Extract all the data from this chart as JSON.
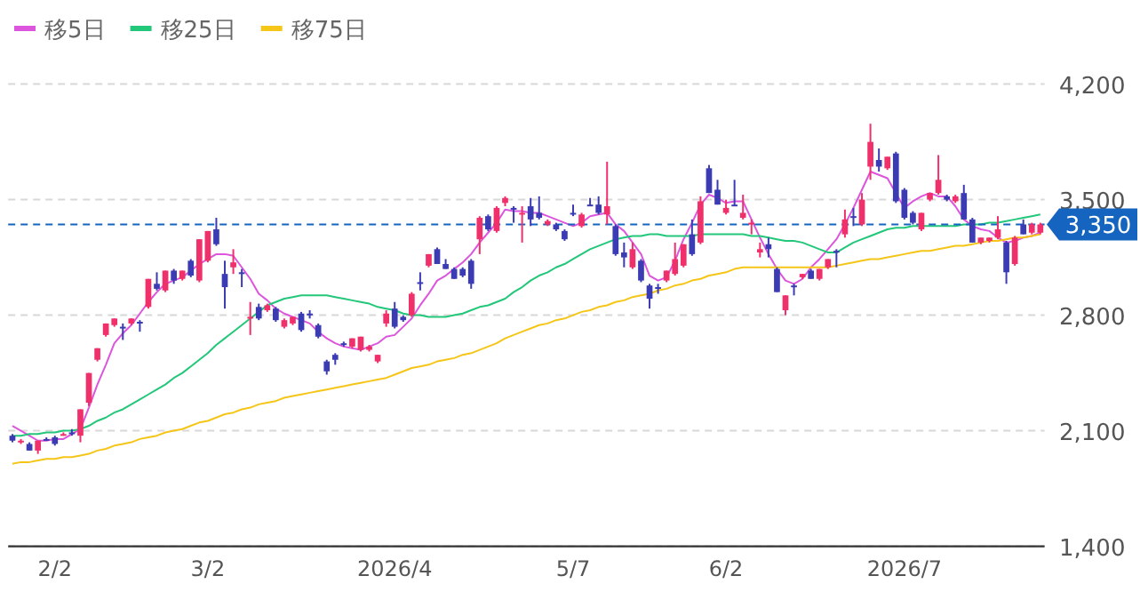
{
  "chart_data": {
    "type": "candlestick",
    "categories": [
      null,
      null,
      null,
      null,
      null,
      "2/2",
      null,
      null,
      null,
      null,
      null,
      null,
      null,
      null,
      null,
      null,
      null,
      null,
      null,
      null,
      null,
      null,
      null,
      "3/2",
      null,
      null,
      null,
      null,
      null,
      null,
      null,
      null,
      null,
      null,
      null,
      null,
      null,
      null,
      null,
      null,
      null,
      null,
      null,
      null,
      null,
      "2026/4",
      null,
      null,
      null,
      null,
      null,
      null,
      null,
      null,
      null,
      null,
      null,
      null,
      null,
      null,
      null,
      null,
      null,
      null,
      null,
      null,
      "5/7",
      null,
      null,
      null,
      null,
      null,
      null,
      null,
      null,
      null,
      null,
      null,
      null,
      null,
      null,
      null,
      null,
      null,
      "6/2",
      null,
      null,
      null,
      null,
      null,
      null,
      null,
      null,
      null,
      null,
      null,
      null,
      null,
      null,
      null,
      null,
      null,
      null,
      null,
      null,
      "2026/7",
      null,
      null,
      null,
      null,
      null,
      null,
      null,
      null,
      null,
      null,
      null,
      null,
      null,
      null,
      null,
      null
    ],
    "ohlc": [
      [
        2070,
        2080,
        2030,
        2040
      ],
      [
        2030,
        2050,
        2020,
        2040
      ],
      [
        2020,
        2030,
        1980,
        1980
      ],
      [
        1980,
        2040,
        1960,
        2040
      ],
      [
        2050,
        2060,
        2040,
        2040
      ],
      [
        2060,
        2070,
        2010,
        2020
      ],
      [
        2080,
        2090,
        2070,
        2080
      ],
      [
        2090,
        2110,
        2070,
        2090
      ],
      [
        2070,
        2230,
        2030,
        2230
      ],
      [
        2270,
        2450,
        2250,
        2450
      ],
      [
        2530,
        2600,
        2520,
        2600
      ],
      [
        2680,
        2750,
        2670,
        2750
      ],
      [
        2740,
        2780,
        2730,
        2780
      ],
      [
        2730,
        2750,
        2650,
        2720
      ],
      [
        2750,
        2780,
        2740,
        2780
      ],
      [
        2760,
        2770,
        2700,
        2750
      ],
      [
        2850,
        3020,
        2840,
        3020
      ],
      [
        2990,
        3060,
        2950,
        2960
      ],
      [
        2950,
        3070,
        2940,
        3070
      ],
      [
        3070,
        3080,
        2990,
        3010
      ],
      [
        3020,
        3070,
        3010,
        3070
      ],
      [
        3130,
        3140,
        3030,
        3040
      ],
      [
        3010,
        3260,
        3000,
        3260
      ],
      [
        3130,
        3310,
        3120,
        3310
      ],
      [
        3320,
        3390,
        3220,
        3230
      ],
      [
        3050,
        3130,
        2840,
        2970
      ],
      [
        3090,
        3200,
        3050,
        3120
      ],
      [
        3060,
        3080,
        2970,
        3050
      ],
      [
        2780,
        2880,
        2680,
        2790
      ],
      [
        2850,
        2870,
        2770,
        2780
      ],
      [
        2830,
        2870,
        2820,
        2860
      ],
      [
        2840,
        2850,
        2760,
        2770
      ],
      [
        2730,
        2780,
        2720,
        2770
      ],
      [
        2750,
        2790,
        2740,
        2790
      ],
      [
        2810,
        2820,
        2700,
        2710
      ],
      [
        2810,
        2830,
        2780,
        2800
      ],
      [
        2740,
        2750,
        2660,
        2670
      ],
      [
        2520,
        2530,
        2440,
        2460
      ],
      [
        2560,
        2570,
        2500,
        2530
      ],
      [
        2630,
        2640,
        2610,
        2620
      ],
      [
        2610,
        2660,
        2600,
        2660
      ],
      [
        2590,
        2670,
        2580,
        2670
      ],
      [
        2590,
        2620,
        2580,
        2610
      ],
      [
        2520,
        2560,
        2510,
        2560
      ],
      [
        2750,
        2830,
        2730,
        2810
      ],
      [
        2840,
        2880,
        2720,
        2730
      ],
      [
        2790,
        2800,
        2760,
        2770
      ],
      [
        2800,
        2940,
        2790,
        2930
      ],
      [
        3000,
        3060,
        2950,
        2990
      ],
      [
        3100,
        3170,
        3090,
        3170
      ],
      [
        3200,
        3210,
        3110,
        3110
      ],
      [
        3110,
        3140,
        3080,
        3080
      ],
      [
        3080,
        3090,
        3020,
        3020
      ],
      [
        3080,
        3090,
        3030,
        3040
      ],
      [
        3130,
        3140,
        2960,
        2990
      ],
      [
        3260,
        3400,
        3170,
        3390
      ],
      [
        3400,
        3410,
        3310,
        3320
      ],
      [
        3310,
        3460,
        3300,
        3450
      ],
      [
        3480,
        3520,
        3460,
        3510
      ],
      [
        3450,
        3460,
        3360,
        3440
      ],
      [
        3410,
        3460,
        3240,
        3420
      ],
      [
        3460,
        3510,
        3340,
        3380
      ],
      [
        3420,
        3520,
        3380,
        3390
      ],
      [
        3350,
        3380,
        3340,
        3370
      ],
      [
        3350,
        3360,
        3310,
        3320
      ],
      [
        3310,
        3320,
        3250,
        3260
      ],
      [
        3420,
        3470,
        3400,
        3410
      ],
      [
        3340,
        3420,
        3330,
        3410
      ],
      [
        3470,
        3510,
        3460,
        3460
      ],
      [
        3470,
        3520,
        3410,
        3420
      ],
      [
        3410,
        3730,
        3350,
        3460
      ],
      [
        3340,
        3350,
        3160,
        3170
      ],
      [
        3180,
        3240,
        3090,
        3150
      ],
      [
        3090,
        3240,
        3080,
        3200
      ],
      [
        3130,
        3140,
        3000,
        3010
      ],
      [
        2980,
        2990,
        2840,
        2900
      ],
      [
        2970,
        2990,
        2930,
        2960
      ],
      [
        3010,
        3070,
        3000,
        3070
      ],
      [
        3050,
        3240,
        3040,
        3140
      ],
      [
        3100,
        3230,
        3090,
        3230
      ],
      [
        3290,
        3380,
        3160,
        3170
      ],
      [
        3240,
        3520,
        3230,
        3490
      ],
      [
        3690,
        3710,
        3540,
        3540
      ],
      [
        3560,
        3620,
        3470,
        3470
      ],
      [
        3420,
        3500,
        3410,
        3450
      ],
      [
        3470,
        3620,
        3460,
        3470
      ],
      [
        3390,
        3530,
        3380,
        3420
      ],
      [
        3350,
        3380,
        3290,
        3360
      ],
      [
        3180,
        3240,
        3150,
        3200
      ],
      [
        3230,
        3270,
        3150,
        3200
      ],
      [
        3080,
        3090,
        2940,
        2940
      ],
      [
        2830,
        2920,
        2800,
        2920
      ],
      [
        2980,
        2990,
        2920,
        2970
      ],
      [
        3030,
        3050,
        3020,
        3050
      ],
      [
        3070,
        3080,
        3020,
        3020
      ],
      [
        3020,
        3080,
        3010,
        3080
      ],
      [
        3090,
        3140,
        3080,
        3140
      ],
      [
        3190,
        3200,
        3090,
        3180
      ],
      [
        3290,
        3440,
        3270,
        3380
      ],
      [
        3400,
        3450,
        3340,
        3390
      ],
      [
        3350,
        3540,
        3340,
        3500
      ],
      [
        3700,
        3960,
        3620,
        3850
      ],
      [
        3740,
        3810,
        3670,
        3700
      ],
      [
        3690,
        3760,
        3680,
        3760
      ],
      [
        3780,
        3790,
        3480,
        3490
      ],
      [
        3560,
        3570,
        3380,
        3390
      ],
      [
        3420,
        3430,
        3350,
        3360
      ],
      [
        3320,
        3420,
        3310,
        3420
      ],
      [
        3500,
        3540,
        3490,
        3540
      ],
      [
        3540,
        3770,
        3530,
        3620
      ],
      [
        3520,
        3530,
        3490,
        3500
      ],
      [
        3490,
        3530,
        3480,
        3520
      ],
      [
        3540,
        3590,
        3380,
        3380
      ],
      [
        3380,
        3390,
        3240,
        3240
      ],
      [
        3240,
        3270,
        3230,
        3270
      ],
      [
        3250,
        3270,
        3240,
        3270
      ],
      [
        3270,
        3400,
        3260,
        3320
      ],
      [
        3240,
        3250,
        2990,
        3060
      ],
      [
        3110,
        3280,
        3100,
        3270
      ],
      [
        3350,
        3380,
        3290,
        3290
      ],
      [
        3300,
        3360,
        3290,
        3350
      ],
      [
        3300,
        3360,
        3290,
        3350
      ]
    ],
    "colors": [
      "#3b3bb3",
      "#f0306a",
      "#3b3bb3",
      "#f0306a",
      "#3b3bb3",
      "#3b3bb3",
      "#f0306a",
      "#3b3bb3",
      "#f0306a",
      "#f0306a",
      "#f0306a",
      "#f0306a",
      "#f0306a",
      "#3b3bb3",
      "#f0306a",
      "#3b3bb3",
      "#f0306a",
      "#3b3bb3",
      "#f0306a",
      "#3b3bb3",
      "#f0306a",
      "#3b3bb3",
      "#f0306a",
      "#f0306a",
      "#3b3bb3",
      "#3b3bb3",
      "#f0306a",
      "#3b3bb3",
      "#f0306a",
      "#3b3bb3",
      "#f0306a",
      "#3b3bb3",
      "#f0306a",
      "#f0306a",
      "#3b3bb3",
      "#3b3bb3",
      "#3b3bb3",
      "#3b3bb3",
      "#3b3bb3",
      "#3b3bb3",
      "#f0306a",
      "#f0306a",
      "#f0306a",
      "#f0306a",
      "#f0306a",
      "#3b3bb3",
      "#3b3bb3",
      "#f0306a",
      "#3b3bb3",
      "#f0306a",
      "#3b3bb3",
      "#3b3bb3",
      "#3b3bb3",
      "#3b3bb3",
      "#3b3bb3",
      "#f0306a",
      "#3b3bb3",
      "#f0306a",
      "#f0306a",
      "#3b3bb3",
      "#f0306a",
      "#3b3bb3",
      "#3b3bb3",
      "#f0306a",
      "#3b3bb3",
      "#3b3bb3",
      "#3b3bb3",
      "#f0306a",
      "#3b3bb3",
      "#3b3bb3",
      "#f0306a",
      "#3b3bb3",
      "#3b3bb3",
      "#f0306a",
      "#3b3bb3",
      "#3b3bb3",
      "#3b3bb3",
      "#f0306a",
      "#f0306a",
      "#f0306a",
      "#3b3bb3",
      "#f0306a",
      "#3b3bb3",
      "#3b3bb3",
      "#f0306a",
      "#3b3bb3",
      "#f0306a",
      "#f0306a",
      "#f0306a",
      "#3b3bb3",
      "#3b3bb3",
      "#f0306a",
      "#3b3bb3",
      "#f0306a",
      "#3b3bb3",
      "#f0306a",
      "#f0306a",
      "#3b3bb3",
      "#f0306a",
      "#3b3bb3",
      "#f0306a",
      "#f0306a",
      "#3b3bb3",
      "#f0306a",
      "#3b3bb3",
      "#3b3bb3",
      "#3b3bb3",
      "#f0306a",
      "#f0306a",
      "#f0306a",
      "#3b3bb3",
      "#f0306a",
      "#3b3bb3",
      "#3b3bb3",
      "#f0306a",
      "#f0306a",
      "#f0306a",
      "#3b3bb3",
      "#f0306a",
      "#3b3bb3",
      "#f0306a",
      "#f0306a"
    ],
    "series": [
      {
        "name": "移5日",
        "type": "line",
        "color": "#dd55dd",
        "values": [
          2130,
          2100,
          2070,
          2040,
          2040,
          2050,
          2050,
          2080,
          2110,
          2240,
          2380,
          2500,
          2630,
          2690,
          2740,
          2810,
          2880,
          2940,
          2990,
          3010,
          3030,
          3070,
          3110,
          3140,
          3170,
          3170,
          3160,
          3090,
          3020,
          2930,
          2890,
          2840,
          2810,
          2790,
          2770,
          2750,
          2700,
          2660,
          2630,
          2610,
          2600,
          2590,
          2610,
          2630,
          2670,
          2680,
          2730,
          2780,
          2860,
          2930,
          3010,
          3040,
          3080,
          3120,
          3170,
          3240,
          3300,
          3360,
          3440,
          3430,
          3430,
          3420,
          3420,
          3400,
          3380,
          3360,
          3340,
          3360,
          3400,
          3410,
          3420,
          3350,
          3310,
          3240,
          3170,
          3040,
          3010,
          3030,
          3130,
          3260,
          3360,
          3470,
          3530,
          3510,
          3480,
          3490,
          3490,
          3380,
          3270,
          3170,
          3080,
          3010,
          2990,
          3020,
          3090,
          3140,
          3200,
          3260,
          3350,
          3450,
          3560,
          3670,
          3650,
          3630,
          3540,
          3450,
          3490,
          3520,
          3540,
          3520,
          3520,
          3460,
          3380,
          3340,
          3320,
          3310,
          3270,
          3240,
          3250,
          3270,
          3280,
          3300
        ]
      },
      {
        "name": "移25日",
        "type": "line",
        "color": "#22c77a",
        "values": [
          2070,
          2070,
          2080,
          2080,
          2090,
          2090,
          2100,
          2100,
          2110,
          2130,
          2160,
          2180,
          2210,
          2230,
          2260,
          2290,
          2320,
          2350,
          2380,
          2420,
          2450,
          2490,
          2530,
          2570,
          2620,
          2660,
          2700,
          2740,
          2780,
          2820,
          2860,
          2880,
          2900,
          2910,
          2920,
          2920,
          2920,
          2920,
          2910,
          2900,
          2890,
          2880,
          2870,
          2850,
          2840,
          2830,
          2810,
          2800,
          2800,
          2790,
          2790,
          2790,
          2800,
          2810,
          2830,
          2850,
          2860,
          2880,
          2900,
          2940,
          2970,
          3010,
          3040,
          3060,
          3090,
          3110,
          3140,
          3170,
          3200,
          3220,
          3240,
          3260,
          3270,
          3280,
          3280,
          3290,
          3290,
          3280,
          3280,
          3280,
          3280,
          3290,
          3290,
          3290,
          3290,
          3290,
          3290,
          3280,
          3280,
          3270,
          3260,
          3250,
          3250,
          3240,
          3220,
          3200,
          3180,
          3180,
          3210,
          3240,
          3260,
          3280,
          3300,
          3320,
          3330,
          3330,
          3340,
          3340,
          3340,
          3340,
          3340,
          3340,
          3350,
          3350,
          3350,
          3360,
          3360,
          3370,
          3380,
          3390,
          3400,
          3410
        ]
      },
      {
        "name": "移75日",
        "type": "line",
        "color": "#f5c518",
        "values": [
          1900,
          1910,
          1910,
          1920,
          1930,
          1930,
          1940,
          1940,
          1950,
          1960,
          1980,
          1990,
          2010,
          2020,
          2030,
          2050,
          2060,
          2070,
          2090,
          2100,
          2110,
          2130,
          2150,
          2160,
          2180,
          2200,
          2210,
          2230,
          2240,
          2260,
          2270,
          2280,
          2300,
          2310,
          2320,
          2330,
          2340,
          2350,
          2360,
          2370,
          2380,
          2390,
          2400,
          2410,
          2420,
          2440,
          2460,
          2480,
          2490,
          2500,
          2520,
          2530,
          2540,
          2560,
          2570,
          2590,
          2610,
          2630,
          2660,
          2680,
          2700,
          2720,
          2740,
          2750,
          2770,
          2780,
          2800,
          2820,
          2830,
          2850,
          2860,
          2880,
          2890,
          2910,
          2920,
          2930,
          2950,
          2960,
          2980,
          2990,
          3010,
          3020,
          3040,
          3050,
          3060,
          3080,
          3090,
          3090,
          3090,
          3090,
          3090,
          3090,
          3090,
          3090,
          3090,
          3090,
          3090,
          3100,
          3110,
          3120,
          3130,
          3140,
          3140,
          3150,
          3160,
          3170,
          3180,
          3190,
          3190,
          3200,
          3210,
          3220,
          3220,
          3230,
          3240,
          3250,
          3250,
          3260,
          3270,
          3270,
          3280,
          3290
        ]
      }
    ],
    "ylim": [
      1400,
      4200
    ],
    "yticks": [
      {
        "value": 1400,
        "label": "1,400"
      },
      {
        "value": 2100,
        "label": "2,100"
      },
      {
        "value": 2800,
        "label": "2,800"
      },
      {
        "value": 3500,
        "label": "3,500"
      },
      {
        "value": 4200,
        "label": "4,200"
      }
    ],
    "grid": "y",
    "legend": "top left",
    "ref_lines": [
      {
        "axis": "y",
        "value": 3350,
        "label": "3,350",
        "color": "#1565c0",
        "line_style": "dashed"
      }
    ]
  }
}
